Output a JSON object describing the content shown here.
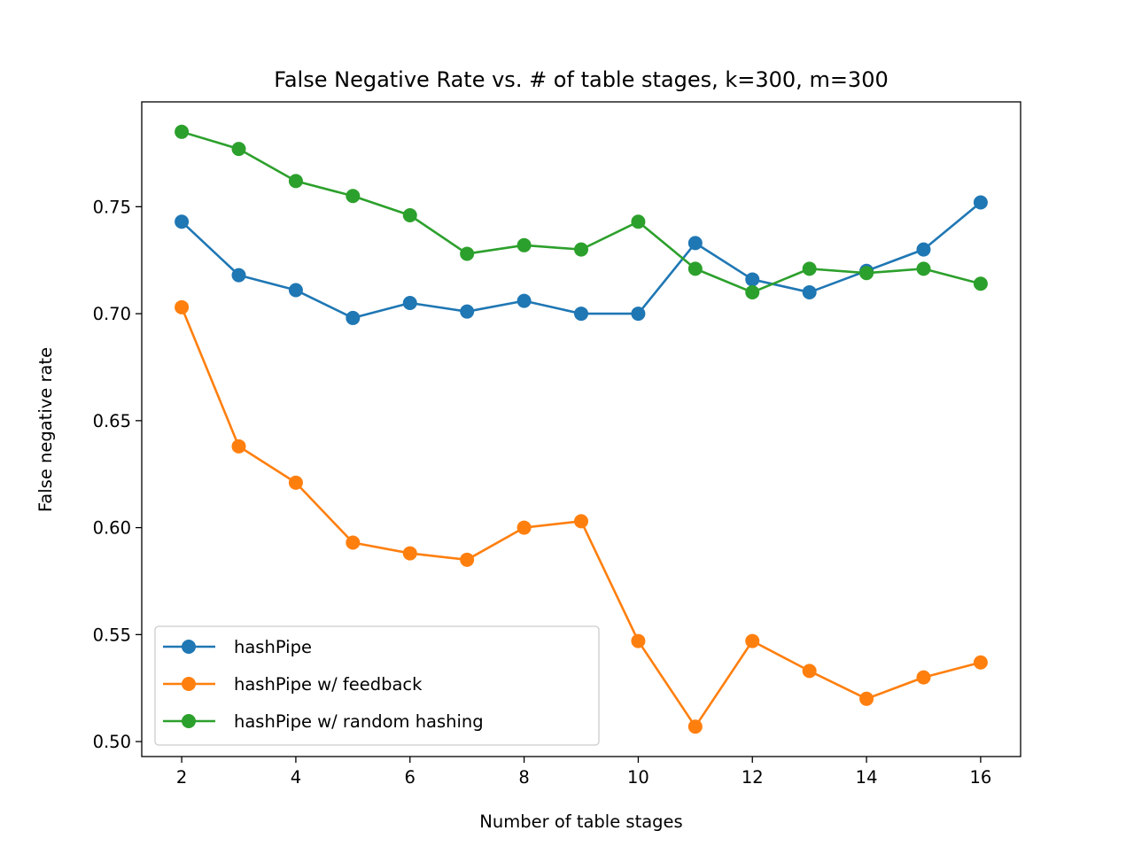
{
  "chart_data": {
    "type": "line",
    "title": "False Negative Rate vs. # of table stages, k=300, m=300",
    "xlabel": "Number of table stages",
    "ylabel": "False negative rate",
    "xlim": [
      1.3,
      16.7
    ],
    "ylim": [
      0.493,
      0.799
    ],
    "xticks": [
      2,
      4,
      6,
      8,
      10,
      12,
      14,
      16
    ],
    "xtick_labels": [
      "2",
      "4",
      "6",
      "8",
      "10",
      "12",
      "14",
      "16"
    ],
    "yticks": [
      0.5,
      0.55,
      0.6,
      0.65,
      0.7,
      0.75
    ],
    "ytick_labels": [
      "0.50",
      "0.55",
      "0.60",
      "0.65",
      "0.70",
      "0.75"
    ],
    "grid": false,
    "legend_position": "lower-left",
    "x": [
      2,
      3,
      4,
      5,
      6,
      7,
      8,
      9,
      10,
      11,
      12,
      13,
      14,
      15,
      16
    ],
    "series": [
      {
        "name": "hashPipe",
        "color": "#1f77b4",
        "values": [
          0.743,
          0.718,
          0.711,
          0.698,
          0.705,
          0.701,
          0.706,
          0.7,
          0.7,
          0.733,
          0.716,
          0.71,
          0.72,
          0.73,
          0.752
        ]
      },
      {
        "name": "hashPipe w/ feedback",
        "color": "#ff7f0e",
        "values": [
          0.703,
          0.638,
          0.621,
          0.593,
          0.588,
          0.585,
          0.6,
          0.603,
          0.547,
          0.507,
          0.547,
          0.533,
          0.52,
          0.53,
          0.537
        ]
      },
      {
        "name": "hashPipe w/ random hashing",
        "color": "#2ca02c",
        "values": [
          0.785,
          0.777,
          0.762,
          0.755,
          0.746,
          0.728,
          0.732,
          0.73,
          0.743,
          0.721,
          0.71,
          0.721,
          0.719,
          0.721,
          0.714
        ]
      }
    ]
  }
}
